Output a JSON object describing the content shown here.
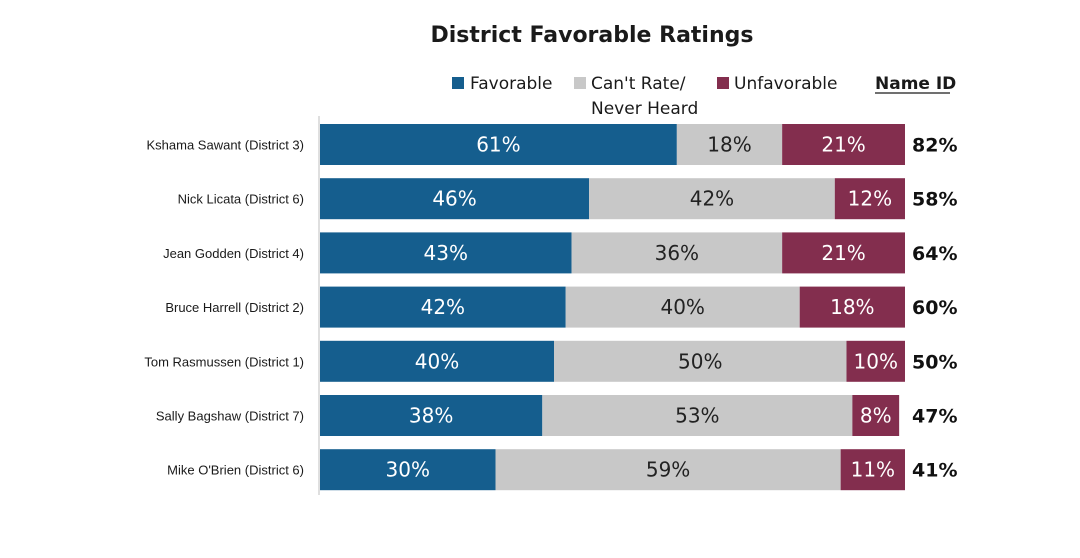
{
  "chart_data": {
    "type": "bar",
    "orientation": "horizontal",
    "stacked": true,
    "title": "District Favorable Ratings",
    "categories": [
      "Kshama Sawant (District 3)",
      "Nick Licata (District 6)",
      "Jean Godden (District 4)",
      "Bruce Harrell (District 2)",
      "Tom Rasmussen (District 1)",
      "Sally Bagshaw (District 7)",
      "Mike O'Brien (District 6)"
    ],
    "series": [
      {
        "name": "Favorable",
        "color": "#155e8e",
        "label_color": "#ffffff",
        "values": [
          61,
          46,
          43,
          42,
          40,
          38,
          30
        ],
        "labels": [
          "61%",
          "46%",
          "43%",
          "42%",
          "40%",
          "38%",
          "30%"
        ]
      },
      {
        "name": "Can't Rate/ Never Heard",
        "name_lines": [
          "Can't Rate/",
          "Never Heard"
        ],
        "color": "#c8c8c8",
        "label_color": "#222222",
        "values": [
          18,
          42,
          36,
          40,
          50,
          53,
          59
        ],
        "labels": [
          "18%",
          "42%",
          "36%",
          "40%",
          "50%",
          "53%",
          "59%"
        ]
      },
      {
        "name": "Unfavorable",
        "color": "#832e4e",
        "label_color": "#ffffff",
        "values": [
          21,
          12,
          21,
          18,
          10,
          8,
          11
        ],
        "labels": [
          "21%",
          "12%",
          "21%",
          "18%",
          "10%",
          "8%",
          "11%"
        ]
      }
    ],
    "name_id": {
      "header": "Name ID",
      "values": [
        82,
        58,
        64,
        60,
        50,
        47,
        41
      ],
      "labels": [
        "82%",
        "58%",
        "64%",
        "60%",
        "50%",
        "47%",
        "41%"
      ]
    },
    "xlim": [
      0,
      100
    ],
    "grid": false,
    "legend_position": "top"
  }
}
